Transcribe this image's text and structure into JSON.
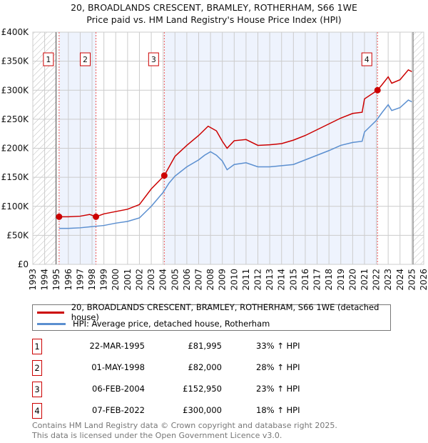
{
  "chart_data": {
    "type": "line",
    "title": "20, BROADLANDS CRESCENT, BRAMLEY, ROTHERHAM, S66 1WE",
    "subtitle": "Price paid vs. HM Land Registry's House Price Index (HPI)",
    "xlim": [
      1993,
      2026
    ],
    "ylim": [
      0,
      400000
    ],
    "yticks": [
      {
        "v": 0,
        "label": "£0"
      },
      {
        "v": 50000,
        "label": "£50K"
      },
      {
        "v": 100000,
        "label": "£100K"
      },
      {
        "v": 150000,
        "label": "£150K"
      },
      {
        "v": 200000,
        "label": "£200K"
      },
      {
        "v": 250000,
        "label": "£250K"
      },
      {
        "v": 300000,
        "label": "£300K"
      },
      {
        "v": 350000,
        "label": "£350K"
      },
      {
        "v": 400000,
        "label": "£400K"
      }
    ],
    "xticks": [
      "1993",
      "1994",
      "1995",
      "1996",
      "1997",
      "1998",
      "1999",
      "2000",
      "2001",
      "2002",
      "2003",
      "2004",
      "2005",
      "2006",
      "2007",
      "2008",
      "2009",
      "2010",
      "2011",
      "2012",
      "2013",
      "2014",
      "2015",
      "2016",
      "2017",
      "2018",
      "2019",
      "2020",
      "2021",
      "2022",
      "2023",
      "2024",
      "2025",
      "2026"
    ],
    "grid": true,
    "hatched_ranges": [
      [
        1993,
        1994.95
      ],
      [
        2025.1,
        2026
      ]
    ],
    "shaded_ranges": [
      [
        1995.22,
        1998.33
      ],
      [
        2004.1,
        2022.1
      ]
    ],
    "series": [
      {
        "name": "20, BROADLANDS CRESCENT, BRAMLEY, ROTHERHAM, S66 1WE (detached house)",
        "color": "#cc0000",
        "x": [
          1995.22,
          1996,
          1997,
          1997.8,
          1998.33,
          1999,
          2000,
          2001,
          2002,
          2003,
          2004.1,
          2005,
          2006,
          2007,
          2007.8,
          2008.5,
          2009,
          2009.4,
          2010,
          2011,
          2012,
          2013,
          2014,
          2015,
          2016,
          2017,
          2018,
          2019,
          2020,
          2020.8,
          2021,
          2022.1,
          2022.5,
          2023,
          2023.3,
          2024,
          2024.7,
          2025
        ],
        "y": [
          81995,
          82000,
          83000,
          86000,
          82000,
          87000,
          91000,
          95000,
          103000,
          130000,
          152950,
          186000,
          205000,
          222000,
          238000,
          230000,
          212000,
          200000,
          213000,
          215000,
          205000,
          206000,
          208000,
          214000,
          222000,
          232000,
          242000,
          252000,
          260000,
          262000,
          285000,
          300000,
          310000,
          323000,
          312000,
          318000,
          335000,
          332000
        ]
      },
      {
        "name": "HPI: Average price, detached house, Rotherham",
        "color": "#5b8fd0",
        "x": [
          1995.22,
          1996,
          1997,
          1998,
          1999,
          2000,
          2001,
          2002,
          2003,
          2004,
          2004.5,
          2005,
          2006,
          2007,
          2007.5,
          2008,
          2008.5,
          2009,
          2009.4,
          2010,
          2011,
          2012,
          2013,
          2014,
          2015,
          2016,
          2017,
          2018,
          2019,
          2020,
          2020.8,
          2021,
          2022,
          2022.5,
          2023,
          2023.3,
          2024,
          2024.7,
          2025
        ],
        "y": [
          62000,
          62000,
          63000,
          65000,
          67000,
          71000,
          74000,
          80000,
          100000,
          124000,
          140000,
          152000,
          168000,
          180000,
          188000,
          194000,
          188000,
          178000,
          163000,
          172000,
          175000,
          168000,
          168000,
          170000,
          172000,
          180000,
          188000,
          196000,
          205000,
          210000,
          212000,
          228000,
          248000,
          262000,
          275000,
          265000,
          270000,
          283000,
          280000
        ]
      }
    ],
    "sales": [
      {
        "n": "1",
        "x": 1995.22,
        "date": "22-MAR-1995",
        "price": 81995,
        "price_label": "£81,995",
        "hpi": "33% ↑ HPI"
      },
      {
        "n": "2",
        "x": 1998.33,
        "date": "01-MAY-1998",
        "price": 82000,
        "price_label": "£82,000",
        "hpi": "28% ↑ HPI"
      },
      {
        "n": "3",
        "x": 2004.1,
        "date": "06-FEB-2004",
        "price": 152950,
        "price_label": "£152,950",
        "hpi": "23% ↑ HPI"
      },
      {
        "n": "4",
        "x": 2022.1,
        "date": "07-FEB-2022",
        "price": 300000,
        "price_label": "£300,000",
        "hpi": "18% ↑ HPI"
      }
    ]
  },
  "footer": {
    "line1": "Contains HM Land Registry data © Crown copyright and database right 2025.",
    "line2": "This data is licensed under the Open Government Licence v3.0."
  }
}
